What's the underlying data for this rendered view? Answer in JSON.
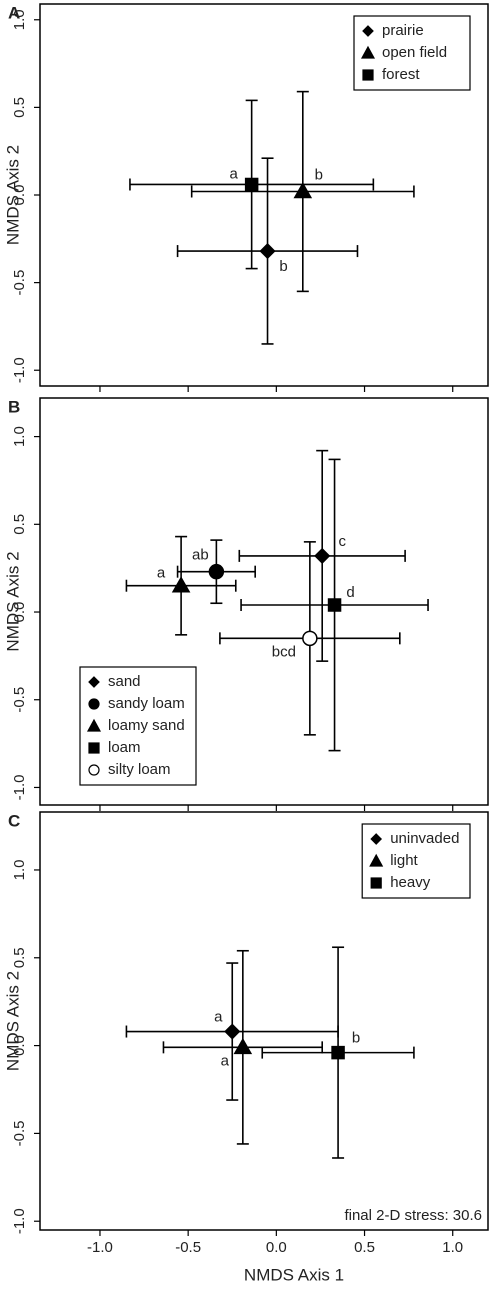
{
  "chart_data": [
    {
      "type": "scatter",
      "panel_label": "A",
      "ylabel": "NMDS Axis 2",
      "xlim": [
        -1.34,
        1.2
      ],
      "ylim": [
        -1.09,
        1.09
      ],
      "xticks": [
        -1,
        -0.5,
        0,
        0.5,
        1
      ],
      "yticks": [
        {
          "value": -1,
          "label": "-1.0"
        },
        -0.5,
        {
          "value": 0,
          "label": "0.0"
        },
        0.5,
        {
          "value": 1,
          "label": "1.0"
        }
      ],
      "legend": "top-right",
      "series": [
        {
          "name": "prairie",
          "marker": "diamond",
          "color": "#000000",
          "x": [
            -0.05
          ],
          "y": [
            -0.32
          ],
          "xerr": [
            0.51
          ],
          "yerr": [
            0.53
          ],
          "labels": [
            "b"
          ]
        },
        {
          "name": "open field",
          "marker": "triangle",
          "color": "#000000",
          "x": [
            0.15
          ],
          "y": [
            0.02
          ],
          "xerr": [
            0.63
          ],
          "yerr": [
            0.57
          ],
          "labels": [
            "b"
          ]
        },
        {
          "name": "forest",
          "marker": "square",
          "color": "#000000",
          "x": [
            -0.14
          ],
          "y": [
            0.06
          ],
          "xerr": [
            0.69
          ],
          "yerr": [
            0.48
          ],
          "labels": [
            "a"
          ]
        }
      ]
    },
    {
      "type": "scatter",
      "panel_label": "B",
      "ylabel": "NMDS Axis 2",
      "xlim": [
        -1.34,
        1.2
      ],
      "ylim": [
        -1.1,
        1.22
      ],
      "xticks": [
        -1,
        -0.5,
        0,
        0.5,
        1
      ],
      "yticks": [
        {
          "value": -1,
          "label": "-1.0"
        },
        -0.5,
        {
          "value": 0,
          "label": "0.0"
        },
        0.5,
        {
          "value": 1,
          "label": "1.0"
        }
      ],
      "legend": "bottom-left",
      "series": [
        {
          "name": "sand",
          "marker": "diamond",
          "color": "#000000",
          "x": [
            0.26
          ],
          "y": [
            0.32
          ],
          "xerr": [
            0.47
          ],
          "yerr": [
            0.6
          ],
          "labels": [
            "c"
          ]
        },
        {
          "name": "sandy loam",
          "marker": "circle",
          "color": "#000000",
          "x": [
            -0.34
          ],
          "y": [
            0.23
          ],
          "xerr": [
            0.22
          ],
          "yerr": [
            0.18
          ],
          "labels": [
            "ab"
          ]
        },
        {
          "name": "loamy sand",
          "marker": "triangle",
          "color": "#000000",
          "x": [
            -0.54
          ],
          "y": [
            0.15
          ],
          "xerr": [
            0.31
          ],
          "yerr": [
            0.28
          ],
          "labels": [
            "a"
          ]
        },
        {
          "name": "loam",
          "marker": "square",
          "color": "#000000",
          "x": [
            0.33
          ],
          "y": [
            0.04
          ],
          "xerr": [
            0.53
          ],
          "yerr": [
            0.83
          ],
          "labels": [
            "d"
          ]
        },
        {
          "name": "silty loam",
          "marker": "open-circle",
          "color": "#000000",
          "x": [
            0.19
          ],
          "y": [
            -0.15
          ],
          "xerr": [
            0.51
          ],
          "yerr": [
            0.55
          ],
          "labels": [
            "bcd"
          ]
        }
      ]
    },
    {
      "type": "scatter",
      "panel_label": "C",
      "ylabel": "NMDS Axis 2",
      "xlabel": "NMDS Axis 1",
      "annotation": "final 2-D stress: 30.6",
      "xlim": [
        -1.34,
        1.2
      ],
      "ylim": [
        -1.05,
        1.33
      ],
      "xticks": [
        {
          "value": -1,
          "label": "-1.0"
        },
        -0.5,
        {
          "value": 0,
          "label": "0.0"
        },
        0.5,
        {
          "value": 1,
          "label": "1.0"
        }
      ],
      "yticks": [
        {
          "value": -1,
          "label": "-1.0"
        },
        -0.5,
        {
          "value": 0,
          "label": "0.0"
        },
        0.5,
        {
          "value": 1,
          "label": "1.0"
        }
      ],
      "legend": "top-right",
      "series": [
        {
          "name": "uninvaded",
          "marker": "diamond",
          "color": "#000000",
          "x": [
            -0.25
          ],
          "y": [
            0.08
          ],
          "xerr": [
            0.6
          ],
          "yerr": [
            0.39
          ],
          "labels": [
            "a"
          ]
        },
        {
          "name": "light",
          "marker": "triangle",
          "color": "#000000",
          "x": [
            -0.19
          ],
          "y": [
            -0.01
          ],
          "xerr": [
            0.45
          ],
          "yerr": [
            0.55
          ],
          "labels": [
            "a"
          ]
        },
        {
          "name": "heavy",
          "marker": "square",
          "color": "#000000",
          "x": [
            0.35
          ],
          "y": [
            -0.04
          ],
          "xerr": [
            0.43
          ],
          "yerr": [
            0.6
          ],
          "labels": [
            "b"
          ]
        }
      ]
    }
  ]
}
